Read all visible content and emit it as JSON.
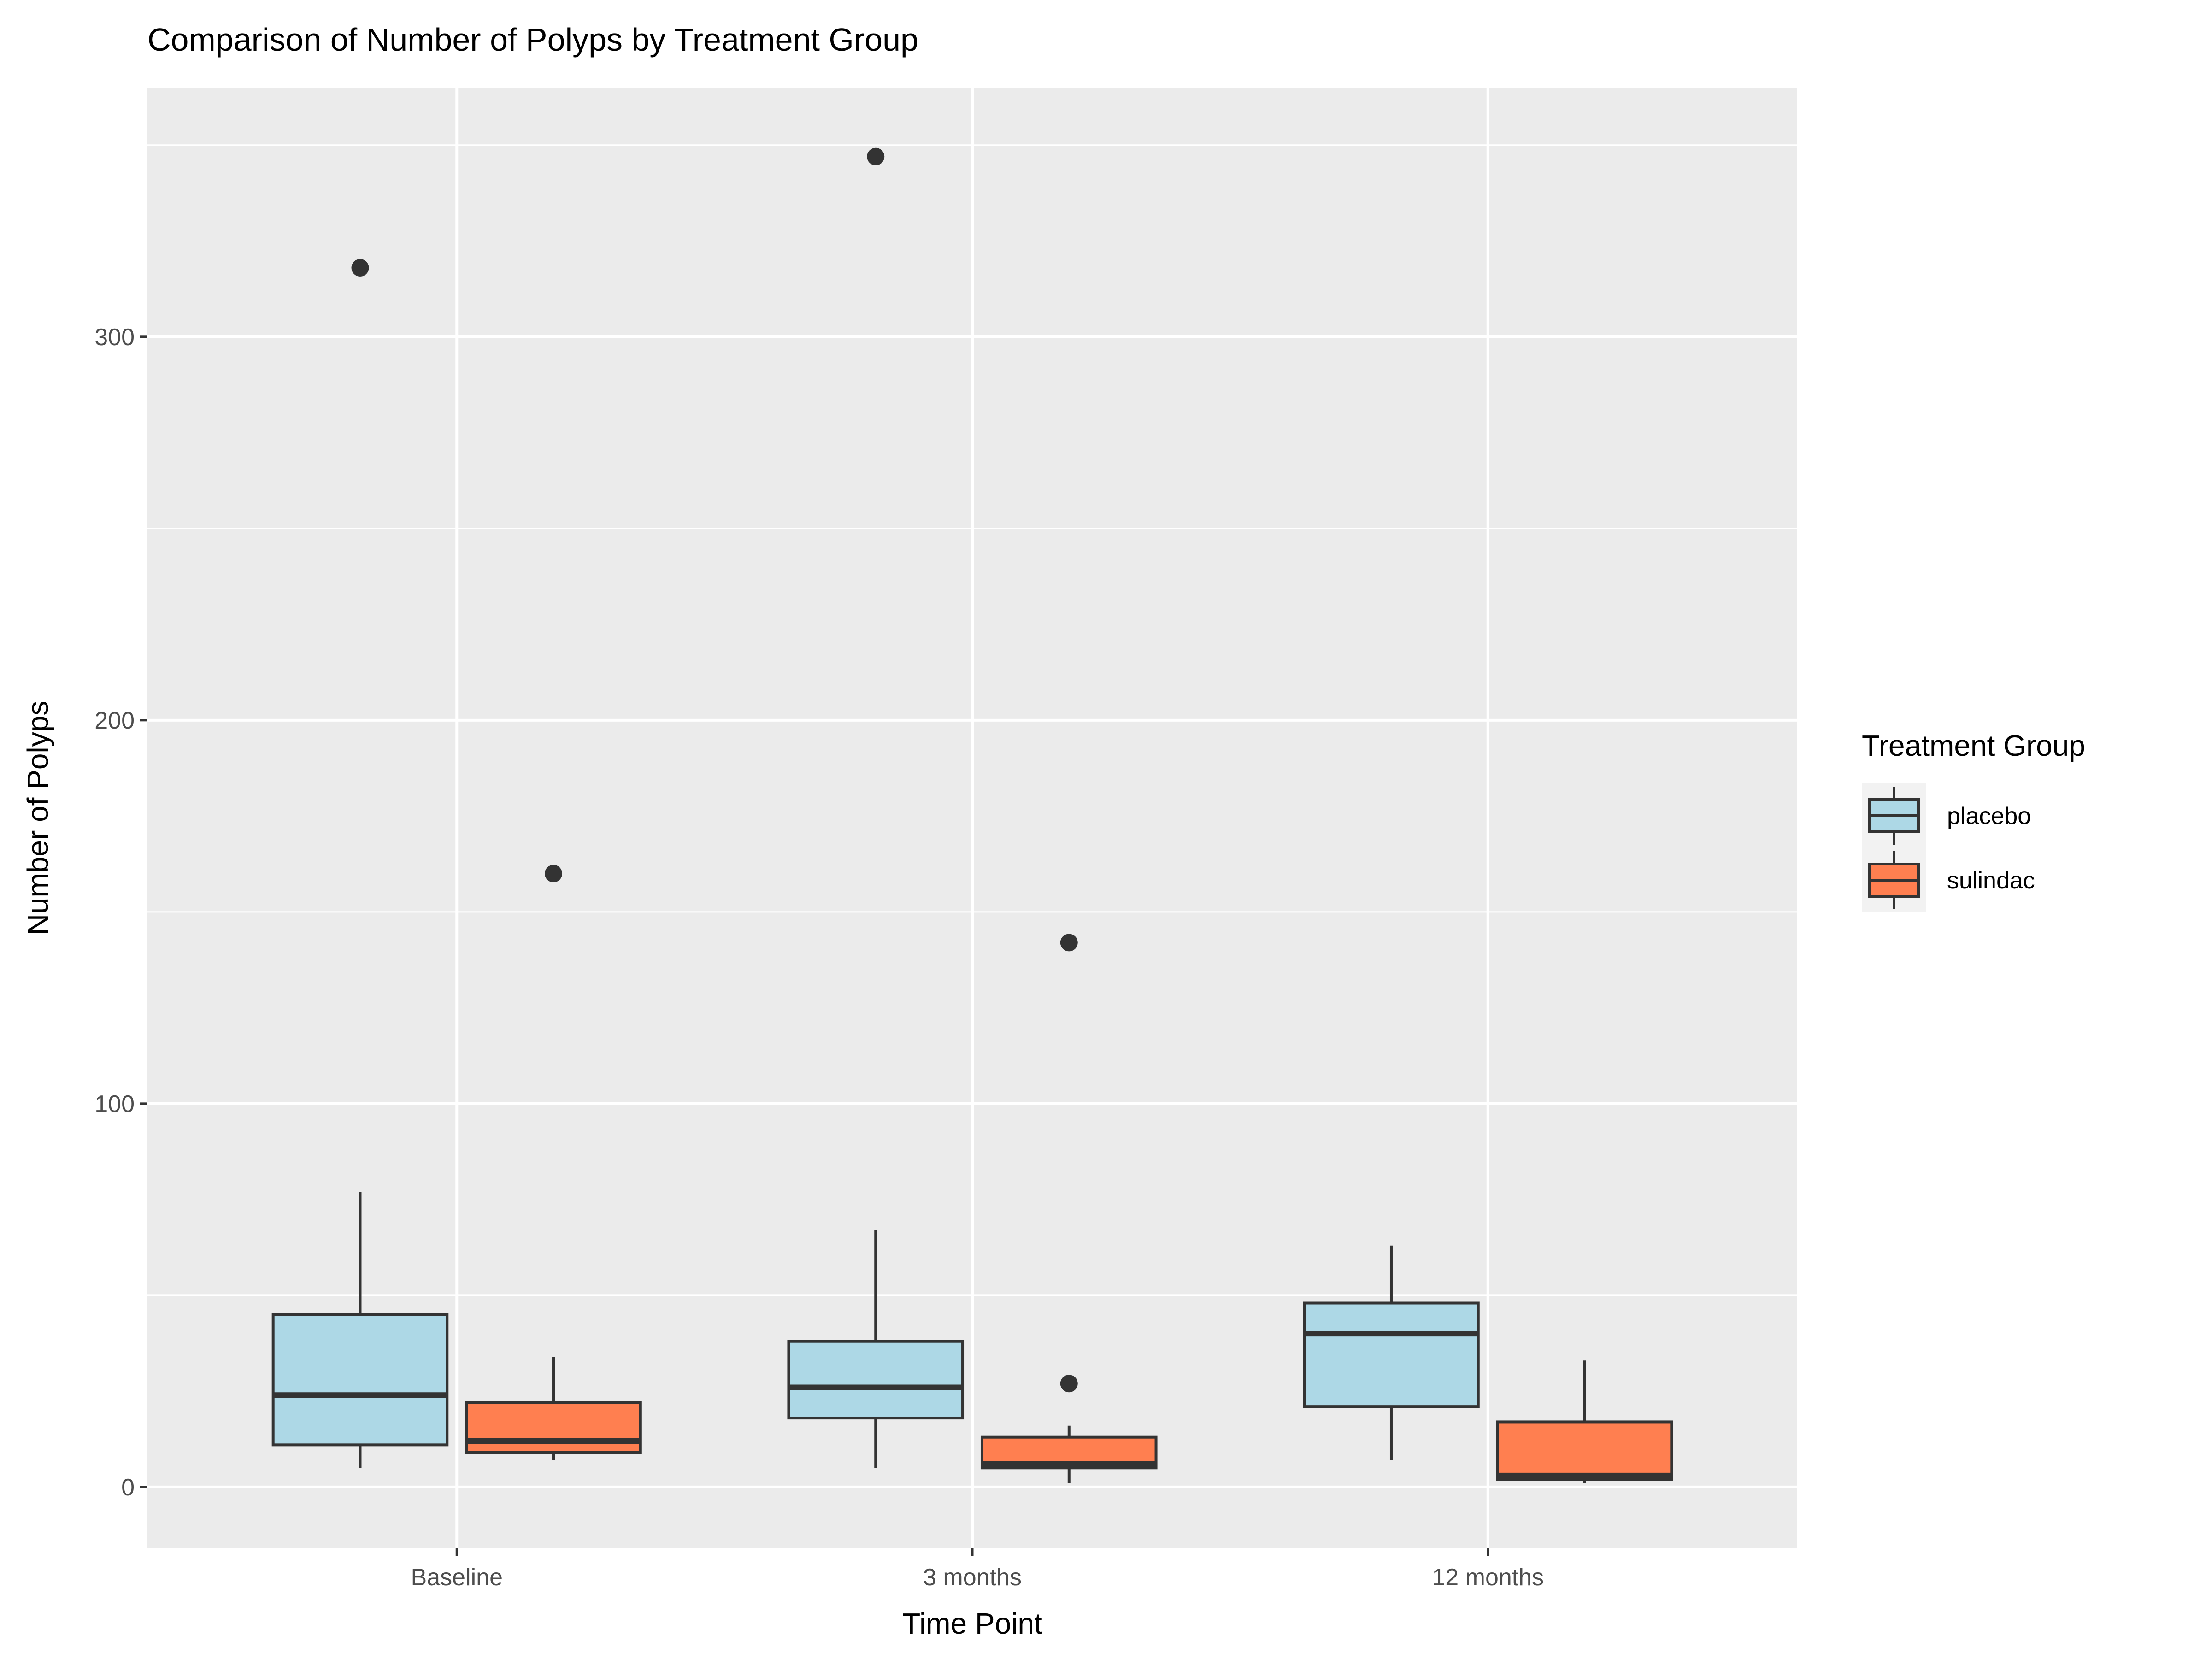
{
  "chart_data": {
    "type": "boxplot",
    "title": "Comparison of Number of Polyps by Treatment Group",
    "xlabel": "Time Point",
    "ylabel": "Number of Polyps",
    "categories": [
      "Baseline",
      "3 months",
      "12 months"
    ],
    "ylim": [
      -16,
      365
    ],
    "yticks": [
      0,
      100,
      200,
      300
    ],
    "grid": true,
    "legend": {
      "title": "Treatment Group",
      "position": "right"
    },
    "series": [
      {
        "name": "placebo",
        "color": "#ADD8E6",
        "boxes": [
          {
            "whisker_low": 5,
            "q1": 11,
            "median": 24,
            "q3": 45,
            "whisker_high": 77,
            "outliers": [
              318
            ]
          },
          {
            "whisker_low": 5,
            "q1": 18,
            "median": 26,
            "q3": 38,
            "whisker_high": 67,
            "outliers": [
              347
            ]
          },
          {
            "whisker_low": 7,
            "q1": 21,
            "median": 40,
            "q3": 48,
            "whisker_high": 63,
            "outliers": []
          }
        ]
      },
      {
        "name": "sulindac",
        "color": "#FF7F50",
        "boxes": [
          {
            "whisker_low": 7,
            "q1": 9,
            "median": 12,
            "q3": 22,
            "whisker_high": 34,
            "outliers": [
              160
            ]
          },
          {
            "whisker_low": 1,
            "q1": 5,
            "median": 6,
            "q3": 13,
            "whisker_high": 16,
            "outliers": [
              142,
              27
            ]
          },
          {
            "whisker_low": 1,
            "q1": 2,
            "median": 3,
            "q3": 17,
            "whisker_high": 33,
            "outliers": []
          }
        ]
      }
    ]
  }
}
